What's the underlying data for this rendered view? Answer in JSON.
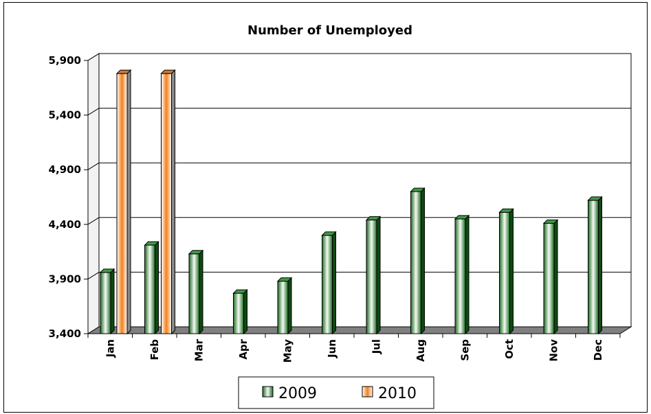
{
  "chart_data": {
    "type": "bar",
    "title": "Number of Unemployed",
    "xlabel": "",
    "ylabel": "",
    "categories": [
      "Jan",
      "Feb",
      "Mar",
      "Apr",
      "May",
      "Jun",
      "Jul",
      "Aug",
      "Sep",
      "Oct",
      "Nov",
      "Dec"
    ],
    "series": [
      {
        "name": "2009",
        "color": "#2e7d32",
        "values": [
          3960,
          4210,
          4130,
          3770,
          3880,
          4300,
          4440,
          4700,
          4450,
          4510,
          4410,
          4620
        ]
      },
      {
        "name": "2010",
        "color": "#f08020",
        "values": [
          5780,
          5780,
          null,
          null,
          null,
          null,
          null,
          null,
          null,
          null,
          null,
          null
        ]
      }
    ],
    "ylim": [
      3400,
      5900
    ],
    "yticks": [
      "3,400",
      "3,900",
      "4,400",
      "4,900",
      "5,400",
      "5,900"
    ],
    "ytick_values": [
      3400,
      3900,
      4400,
      4900,
      5400,
      5900
    ],
    "grid": true,
    "legend_position": "bottom"
  }
}
